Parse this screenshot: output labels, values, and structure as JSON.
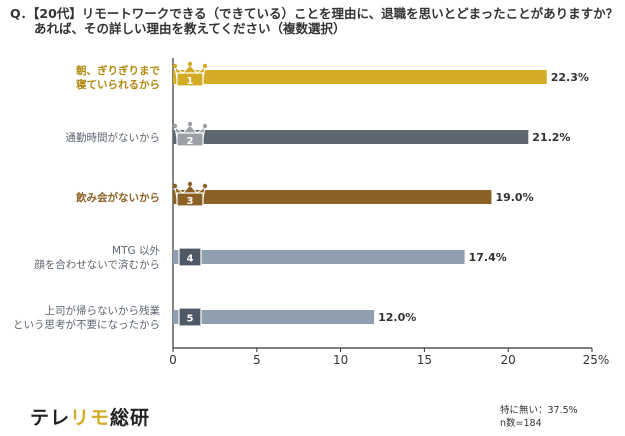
{
  "question": {
    "line1": "Q．【20代】リモートワークできる（できている）ことを理由に、退職を思いとどまったことがありますか？",
    "line2": "あれば、その詳しい理由を教えてください（複数選択）"
  },
  "chart_data": {
    "type": "bar",
    "orientation": "horizontal",
    "categories": [
      [
        "朝、ぎりぎりまで",
        "寝ていられるから"
      ],
      [
        "通勤時間がないから"
      ],
      [
        "飲み会がないから"
      ],
      [
        "MTG 以外",
        "顔を合わせないで済むから"
      ],
      [
        "上司が帰らないから残業",
        "という思考が不要になったから"
      ]
    ],
    "values": [
      22.3,
      21.2,
      19.0,
      17.4,
      12.0
    ],
    "value_labels": [
      "22.3%",
      "21.2%",
      "19.0%",
      "17.4%",
      "12.0%"
    ],
    "rank_labels": [
      "1",
      "2",
      "3",
      "4",
      "5"
    ],
    "xlim": [
      0,
      25
    ],
    "x_ticks": [
      "0",
      "5",
      "10",
      "15",
      "20",
      "25%"
    ],
    "colors": [
      "#d4ab25",
      "#5e6670",
      "#8c6125",
      "#8f9faf",
      "#8f9faf"
    ],
    "label_colors": [
      "#b28a10",
      "#5e6670",
      "#8c6125",
      "#5e6670",
      "#5e6670"
    ],
    "badge_types": [
      "crown",
      "crown",
      "crown",
      "box",
      "box"
    ],
    "badge_colors": [
      "#d4ab25",
      "#9aa0a6",
      "#8c6125",
      "#4e5965",
      "#4e5965"
    ]
  },
  "brand": {
    "part1": "テレ",
    "accent": "リモ",
    "part2": "総研"
  },
  "footnote": {
    "line1": "特に無い：37.5%",
    "line2": "n数=184"
  }
}
